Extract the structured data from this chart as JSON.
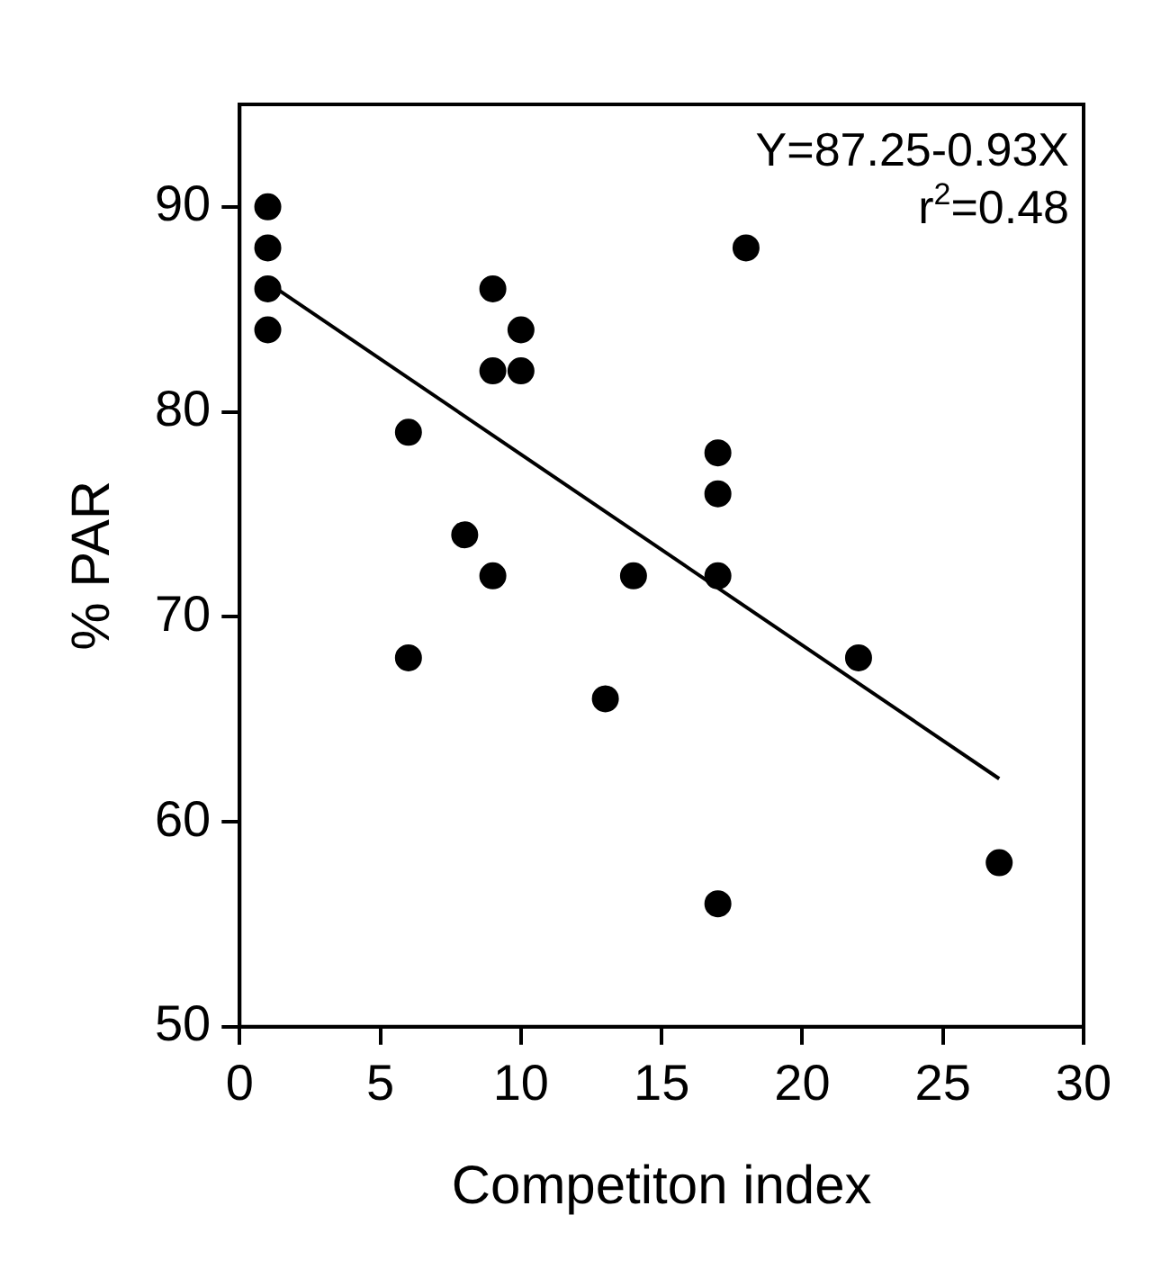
{
  "chart_data": {
    "type": "scatter",
    "xlabel": "Competiton index",
    "ylabel": "% PAR",
    "annotations": [
      "Y=87.25-0.93X",
      "r$^{2}$=0.48"
    ],
    "xlim": [
      0,
      30
    ],
    "xticks": [
      0,
      5,
      10,
      15,
      20,
      25,
      30
    ],
    "ylim": [
      50,
      95
    ],
    "yticks": [
      50,
      60,
      70,
      80,
      90
    ],
    "grid": false,
    "legend": false,
    "marker": "circle",
    "series": [
      {
        "color": "#000000",
        "x": [
          1,
          1,
          1,
          1,
          6,
          8,
          9,
          9,
          10,
          10,
          9,
          14,
          6,
          13,
          18,
          17,
          17,
          17,
          22,
          27,
          17
        ],
        "values": [
          90,
          88,
          86,
          84,
          79,
          74,
          86,
          82,
          84,
          82,
          72,
          72,
          68,
          66,
          88,
          78,
          76,
          72,
          68,
          58,
          56
        ]
      },
      {
        "type": "line",
        "color": "#000000",
        "marker": "none",
        "line_style": "solid",
        "x": [
          1,
          27
        ],
        "values": [
          86.3,
          62.1
        ]
      }
    ]
  }
}
